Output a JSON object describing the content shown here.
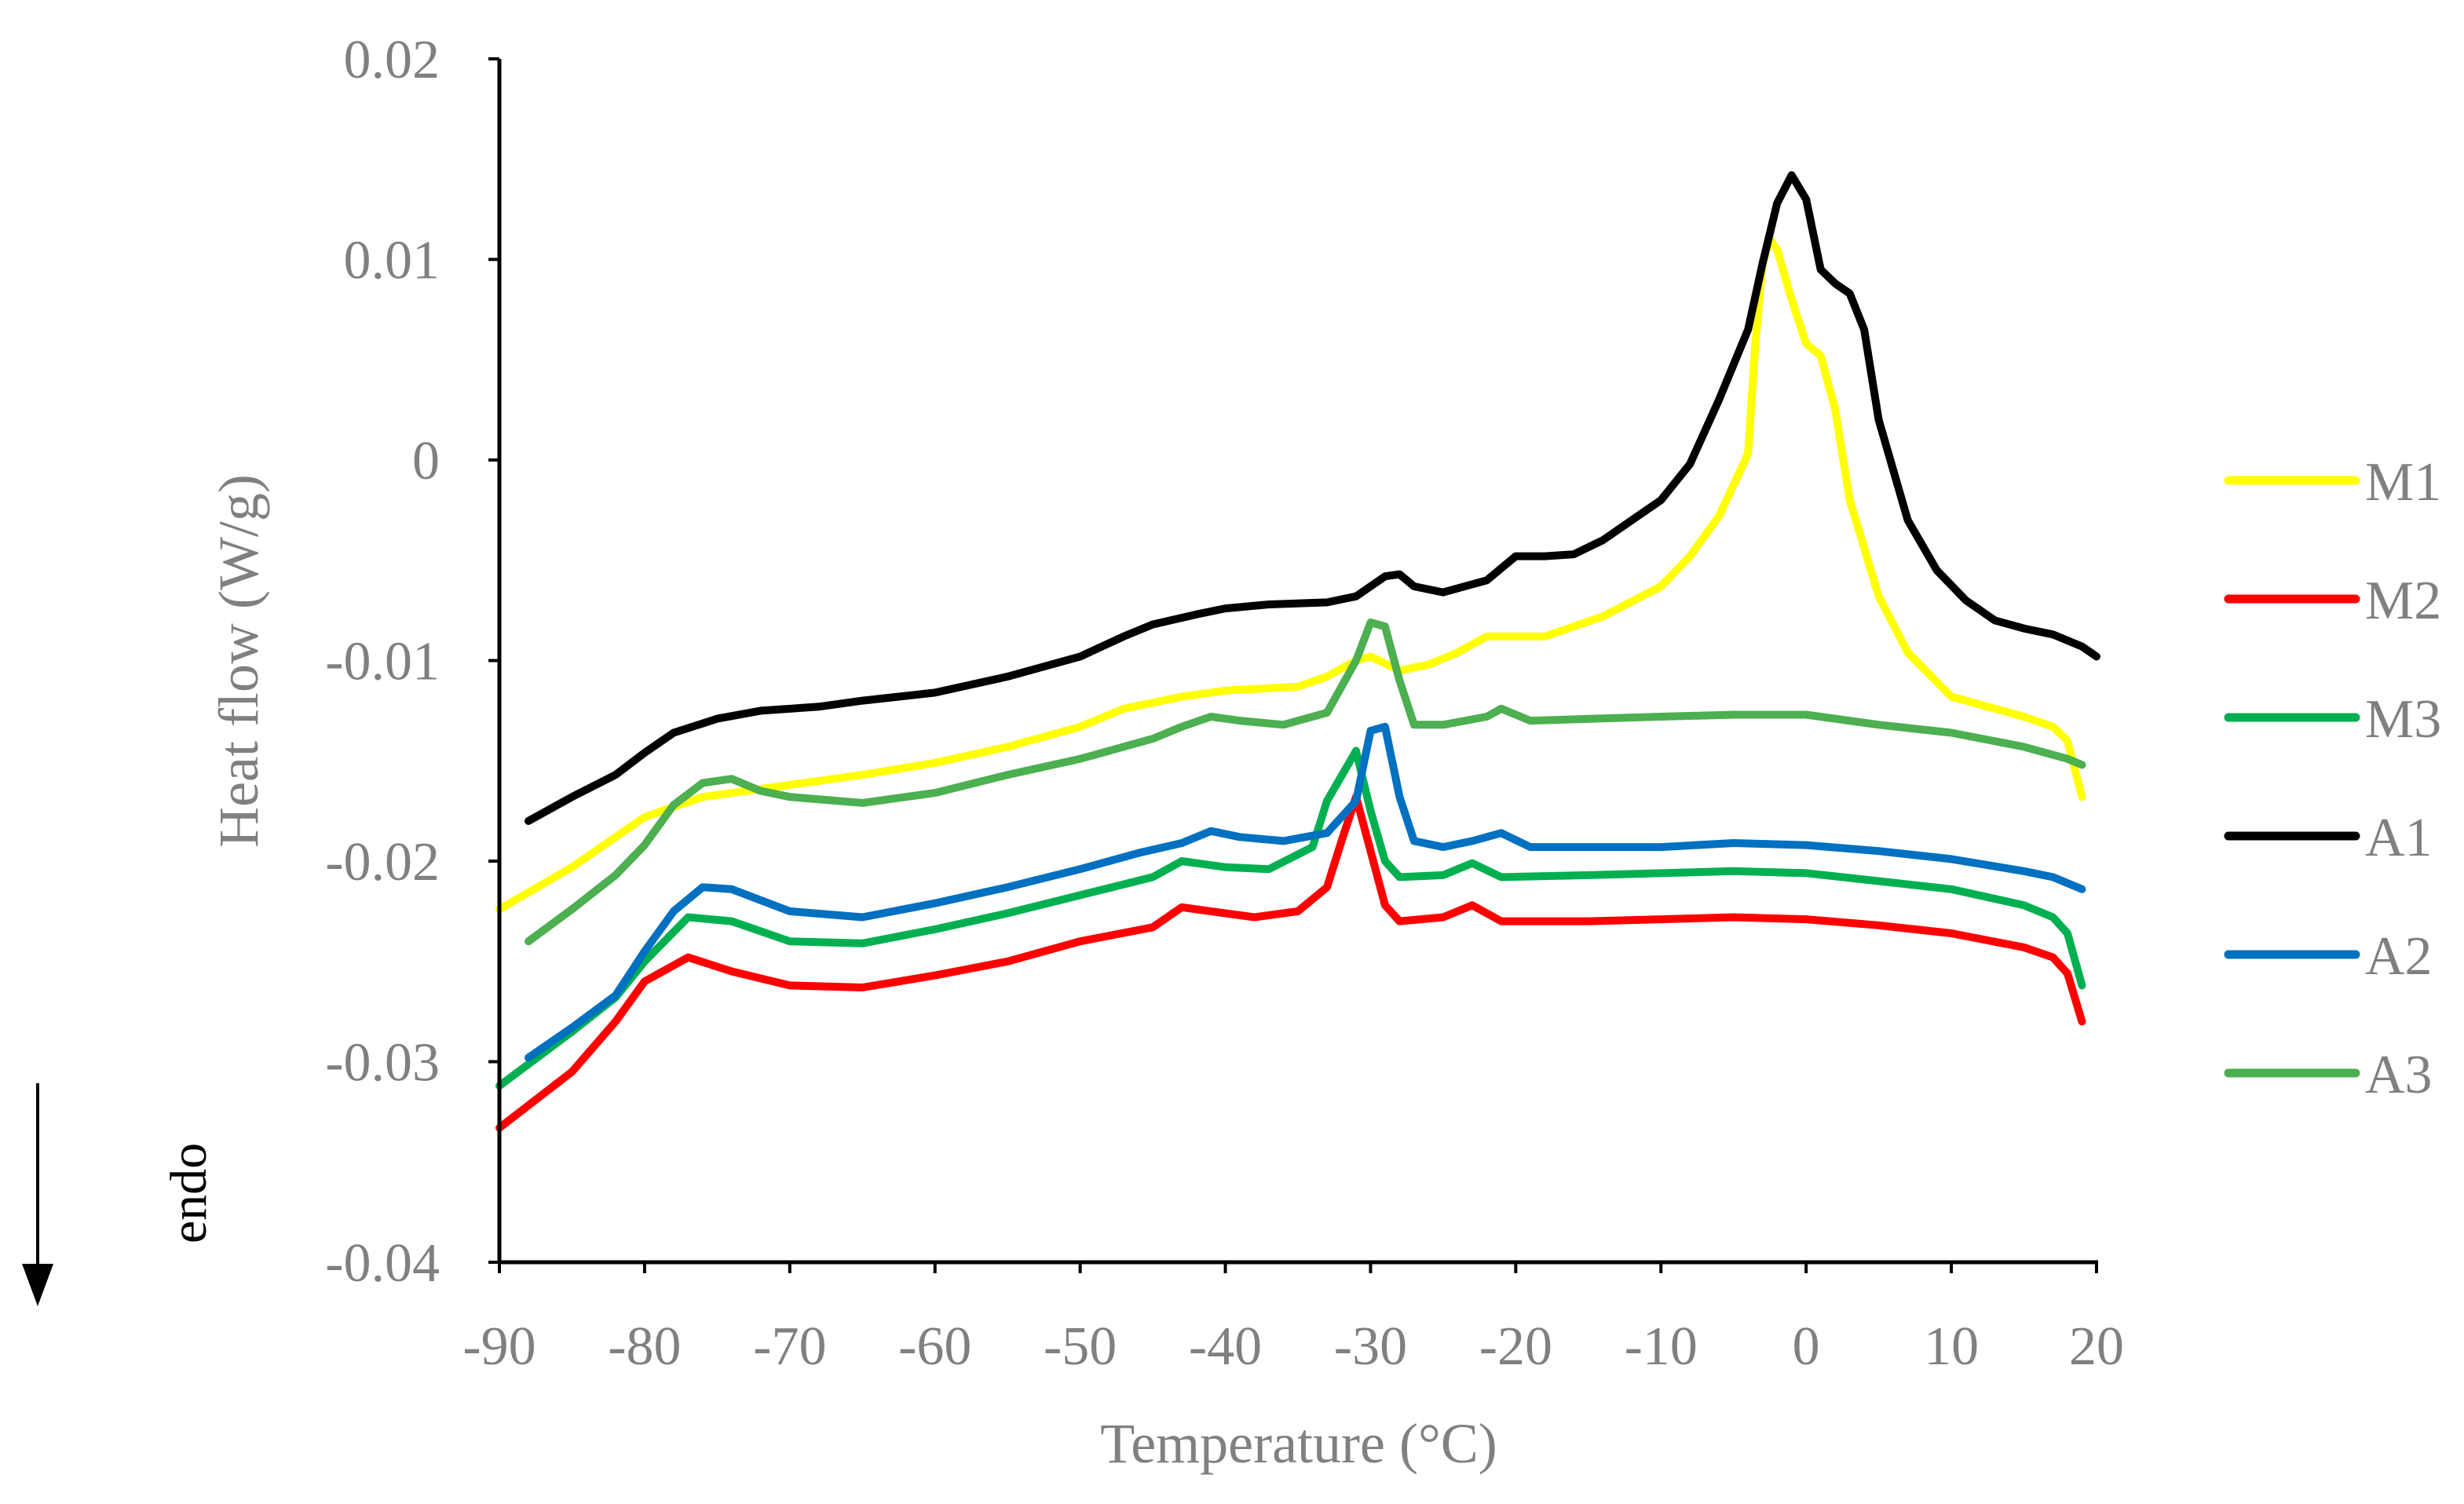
{
  "chart_data": {
    "type": "line",
    "xlabel": "Temperature (°C)",
    "ylabel": "Heat flow (W/g)",
    "xlim": [
      -90,
      20
    ],
    "ylim": [
      -0.04,
      0.02
    ],
    "x_ticks": [
      "-90",
      "-80",
      "-70",
      "-60",
      "-50",
      "-40",
      "-30",
      "-20",
      "-10",
      "0",
      "10",
      "20"
    ],
    "x_tick_values": [
      -90,
      -80,
      -70,
      -60,
      -50,
      -40,
      -30,
      -20,
      -10,
      0,
      10,
      20
    ],
    "y_ticks": [
      "0.02",
      "0.01",
      "0",
      "-0.01",
      "-0.02",
      "-0.03",
      "-0.04"
    ],
    "y_tick_values": [
      0.02,
      0.01,
      0,
      -0.01,
      -0.02,
      -0.03,
      -0.04
    ],
    "annotation": "endo",
    "legend_position": "right",
    "series": [
      {
        "name": "M1",
        "color": "#FFFF00",
        "points": [
          [
            -90,
            -0.0224
          ],
          [
            -85,
            -0.0203
          ],
          [
            -80,
            -0.0178
          ],
          [
            -76,
            -0.0168
          ],
          [
            -70,
            -0.0162
          ],
          [
            -65,
            -0.0157
          ],
          [
            -60,
            -0.0151
          ],
          [
            -55,
            -0.0143
          ],
          [
            -50,
            -0.0133
          ],
          [
            -47,
            -0.0124
          ],
          [
            -43,
            -0.0118
          ],
          [
            -40,
            -0.0115
          ],
          [
            -35,
            -0.0113
          ],
          [
            -33,
            -0.0108
          ],
          [
            -31,
            -0.01
          ],
          [
            -30,
            -0.0098
          ],
          [
            -28,
            -0.0105
          ],
          [
            -26,
            -0.0102
          ],
          [
            -24,
            -0.0096
          ],
          [
            -22,
            -0.0088
          ],
          [
            -20,
            -0.0088
          ],
          [
            -18,
            -0.0088
          ],
          [
            -14,
            -0.0078
          ],
          [
            -10,
            -0.0063
          ],
          [
            -8,
            -0.0048
          ],
          [
            -6,
            -0.0028
          ],
          [
            -4,
            0.0003
          ],
          [
            -3.5,
            0.0058
          ],
          [
            -3,
            0.0098
          ],
          [
            -2.5,
            0.011
          ],
          [
            -2,
            0.0105
          ],
          [
            -1,
            0.008
          ],
          [
            0,
            0.0058
          ],
          [
            1,
            0.0052
          ],
          [
            2,
            0.0025
          ],
          [
            3,
            -0.002
          ],
          [
            5,
            -0.0068
          ],
          [
            7,
            -0.0096
          ],
          [
            10,
            -0.0118
          ],
          [
            15,
            -0.0128
          ],
          [
            17,
            -0.0133
          ],
          [
            18,
            -0.014
          ],
          [
            19,
            -0.0168
          ]
        ]
      },
      {
        "name": "M2",
        "color": "#FF0000",
        "points": [
          [
            -90,
            -0.0333
          ],
          [
            -85,
            -0.0305
          ],
          [
            -82,
            -0.028
          ],
          [
            -80,
            -0.026
          ],
          [
            -77,
            -0.0248
          ],
          [
            -74,
            -0.0255
          ],
          [
            -70,
            -0.0262
          ],
          [
            -65,
            -0.0263
          ],
          [
            -60,
            -0.0257
          ],
          [
            -55,
            -0.025
          ],
          [
            -50,
            -0.024
          ],
          [
            -45,
            -0.0233
          ],
          [
            -43,
            -0.0223
          ],
          [
            -41,
            -0.0225
          ],
          [
            -38,
            -0.0228
          ],
          [
            -35,
            -0.0225
          ],
          [
            -33,
            -0.0213
          ],
          [
            -32,
            -0.019
          ],
          [
            -31,
            -0.0168
          ],
          [
            -30,
            -0.0195
          ],
          [
            -29,
            -0.0222
          ],
          [
            -28,
            -0.023
          ],
          [
            -25,
            -0.0228
          ],
          [
            -23,
            -0.0222
          ],
          [
            -21,
            -0.023
          ],
          [
            -15,
            -0.023
          ],
          [
            -5,
            -0.0228
          ],
          [
            0,
            -0.0229
          ],
          [
            5,
            -0.0232
          ],
          [
            10,
            -0.0236
          ],
          [
            15,
            -0.0243
          ],
          [
            17,
            -0.0248
          ],
          [
            18,
            -0.0256
          ],
          [
            19,
            -0.028
          ]
        ]
      },
      {
        "name": "M3",
        "color": "#00B050",
        "points": [
          [
            -90,
            -0.0312
          ],
          [
            -85,
            -0.0285
          ],
          [
            -82,
            -0.0268
          ],
          [
            -80,
            -0.025
          ],
          [
            -77,
            -0.0228
          ],
          [
            -74,
            -0.023
          ],
          [
            -70,
            -0.024
          ],
          [
            -65,
            -0.0241
          ],
          [
            -60,
            -0.0234
          ],
          [
            -55,
            -0.0226
          ],
          [
            -50,
            -0.0217
          ],
          [
            -45,
            -0.0208
          ],
          [
            -43,
            -0.02
          ],
          [
            -40,
            -0.0203
          ],
          [
            -37,
            -0.0204
          ],
          [
            -34,
            -0.0193
          ],
          [
            -33,
            -0.017
          ],
          [
            -31,
            -0.0145
          ],
          [
            -30,
            -0.0175
          ],
          [
            -29,
            -0.02
          ],
          [
            -28,
            -0.0208
          ],
          [
            -25,
            -0.0207
          ],
          [
            -23,
            -0.0201
          ],
          [
            -21,
            -0.0208
          ],
          [
            -15,
            -0.0207
          ],
          [
            -5,
            -0.0205
          ],
          [
            0,
            -0.0206
          ],
          [
            5,
            -0.021
          ],
          [
            10,
            -0.0214
          ],
          [
            15,
            -0.0222
          ],
          [
            17,
            -0.0228
          ],
          [
            18,
            -0.0236
          ],
          [
            19,
            -0.0262
          ]
        ]
      },
      {
        "name": "A1",
        "color": "#000000",
        "points": [
          [
            -88,
            -0.018
          ],
          [
            -85,
            -0.0168
          ],
          [
            -82,
            -0.0157
          ],
          [
            -80,
            -0.0146
          ],
          [
            -78,
            -0.0136
          ],
          [
            -75,
            -0.0129
          ],
          [
            -72,
            -0.0125
          ],
          [
            -68,
            -0.0123
          ],
          [
            -65,
            -0.012
          ],
          [
            -60,
            -0.0116
          ],
          [
            -55,
            -0.0108
          ],
          [
            -50,
            -0.0098
          ],
          [
            -47,
            -0.0088
          ],
          [
            -45,
            -0.0082
          ],
          [
            -42,
            -0.0077
          ],
          [
            -40,
            -0.0074
          ],
          [
            -37,
            -0.0072
          ],
          [
            -33,
            -0.0071
          ],
          [
            -31,
            -0.0068
          ],
          [
            -29,
            -0.0058
          ],
          [
            -28,
            -0.0057
          ],
          [
            -27,
            -0.0063
          ],
          [
            -25,
            -0.0066
          ],
          [
            -22,
            -0.006
          ],
          [
            -20,
            -0.0048
          ],
          [
            -18,
            -0.0048
          ],
          [
            -16,
            -0.0047
          ],
          [
            -14,
            -0.004
          ],
          [
            -12,
            -0.003
          ],
          [
            -10,
            -0.002
          ],
          [
            -8,
            -0.0002
          ],
          [
            -6,
            0.003
          ],
          [
            -4,
            0.0065
          ],
          [
            -3,
            0.0098
          ],
          [
            -2,
            0.0128
          ],
          [
            -1,
            0.0142
          ],
          [
            0,
            0.013
          ],
          [
            1,
            0.0095
          ],
          [
            2,
            0.0088
          ],
          [
            3,
            0.0083
          ],
          [
            4,
            0.0065
          ],
          [
            5,
            0.002
          ],
          [
            7,
            -0.003
          ],
          [
            9,
            -0.0055
          ],
          [
            11,
            -0.007
          ],
          [
            13,
            -0.008
          ],
          [
            15,
            -0.0084
          ],
          [
            17,
            -0.0087
          ],
          [
            19,
            -0.0093
          ],
          [
            20,
            -0.0098
          ]
        ]
      },
      {
        "name": "A2",
        "color": "#0070C0",
        "points": [
          [
            -88,
            -0.0298
          ],
          [
            -85,
            -0.0283
          ],
          [
            -82,
            -0.0267
          ],
          [
            -80,
            -0.0245
          ],
          [
            -78,
            -0.0225
          ],
          [
            -76,
            -0.0213
          ],
          [
            -74,
            -0.0214
          ],
          [
            -70,
            -0.0225
          ],
          [
            -65,
            -0.0228
          ],
          [
            -60,
            -0.0221
          ],
          [
            -55,
            -0.0213
          ],
          [
            -50,
            -0.0204
          ],
          [
            -46,
            -0.0196
          ],
          [
            -43,
            -0.0191
          ],
          [
            -41,
            -0.0185
          ],
          [
            -39,
            -0.0188
          ],
          [
            -36,
            -0.019
          ],
          [
            -33,
            -0.0186
          ],
          [
            -31,
            -0.017
          ],
          [
            -30,
            -0.0135
          ],
          [
            -29,
            -0.0133
          ],
          [
            -28,
            -0.0168
          ],
          [
            -27,
            -0.019
          ],
          [
            -25,
            -0.0193
          ],
          [
            -23,
            -0.019
          ],
          [
            -21,
            -0.0186
          ],
          [
            -19,
            -0.0193
          ],
          [
            -10,
            -0.0193
          ],
          [
            -5,
            -0.0191
          ],
          [
            0,
            -0.0192
          ],
          [
            5,
            -0.0195
          ],
          [
            10,
            -0.0199
          ],
          [
            15,
            -0.0205
          ],
          [
            17,
            -0.0208
          ],
          [
            19,
            -0.0214
          ]
        ]
      },
      {
        "name": "A3",
        "color": "#4CAF50",
        "points": [
          [
            -88,
            -0.024
          ],
          [
            -85,
            -0.0224
          ],
          [
            -82,
            -0.0207
          ],
          [
            -80,
            -0.0192
          ],
          [
            -78,
            -0.0172
          ],
          [
            -76,
            -0.0161
          ],
          [
            -74,
            -0.0159
          ],
          [
            -72,
            -0.0165
          ],
          [
            -70,
            -0.0168
          ],
          [
            -65,
            -0.0171
          ],
          [
            -60,
            -0.0166
          ],
          [
            -55,
            -0.0157
          ],
          [
            -50,
            -0.0149
          ],
          [
            -45,
            -0.0139
          ],
          [
            -43,
            -0.0133
          ],
          [
            -41,
            -0.0128
          ],
          [
            -39,
            -0.013
          ],
          [
            -36,
            -0.0132
          ],
          [
            -33,
            -0.0126
          ],
          [
            -31,
            -0.01
          ],
          [
            -30,
            -0.0081
          ],
          [
            -29,
            -0.0083
          ],
          [
            -28,
            -0.011
          ],
          [
            -27,
            -0.0132
          ],
          [
            -25,
            -0.0132
          ],
          [
            -22,
            -0.0128
          ],
          [
            -21,
            -0.0124
          ],
          [
            -19,
            -0.013
          ],
          [
            -10,
            -0.0128
          ],
          [
            -5,
            -0.0127
          ],
          [
            0,
            -0.0127
          ],
          [
            5,
            -0.0132
          ],
          [
            10,
            -0.0136
          ],
          [
            15,
            -0.0143
          ],
          [
            18,
            -0.0149
          ],
          [
            19,
            -0.0152
          ]
        ]
      }
    ]
  }
}
